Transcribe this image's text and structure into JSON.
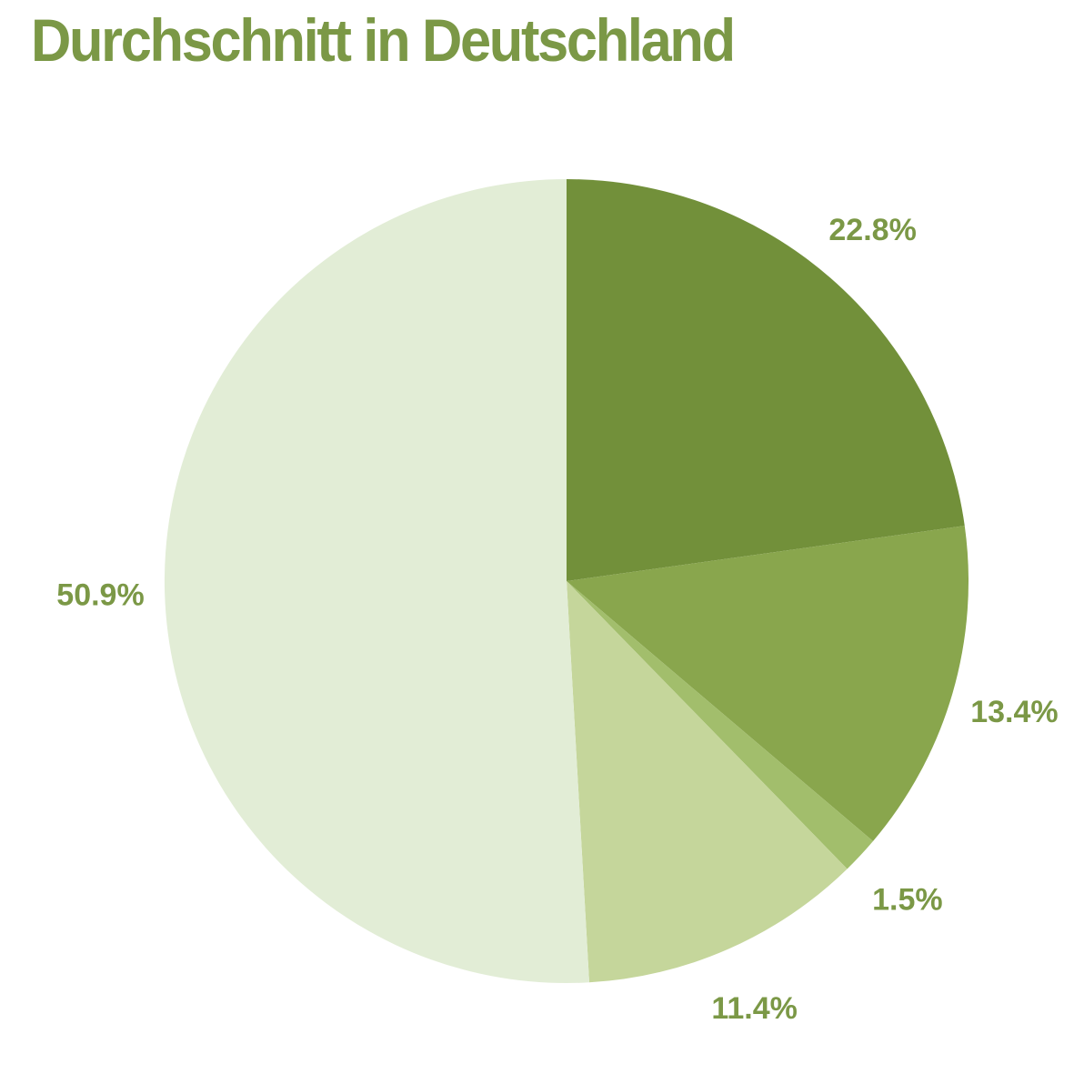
{
  "page": {
    "background": "#ffffff"
  },
  "chart_data": {
    "type": "pie",
    "title": "Durchschnitt in Deutschland",
    "title_color": "#7B9846",
    "label_color": "#7B9846",
    "unit": "%",
    "start_angle_deg": 0,
    "direction": "clockwise",
    "legend_position": "none",
    "total": 100.0,
    "slices": [
      {
        "name": "slice-22-8",
        "label": "22.8%",
        "value": 22.8,
        "color": "#72903A"
      },
      {
        "name": "slice-13-4",
        "label": "13.4%",
        "value": 13.4,
        "color": "#89A64D"
      },
      {
        "name": "slice-1-5",
        "label": "1.5%",
        "value": 1.5,
        "color": "#A2BE6C"
      },
      {
        "name": "slice-11-4",
        "label": "11.4%",
        "value": 11.4,
        "color": "#C5D69B"
      },
      {
        "name": "slice-50-9",
        "label": "50.9%",
        "value": 50.9,
        "color": "#E2EDD6"
      }
    ]
  }
}
